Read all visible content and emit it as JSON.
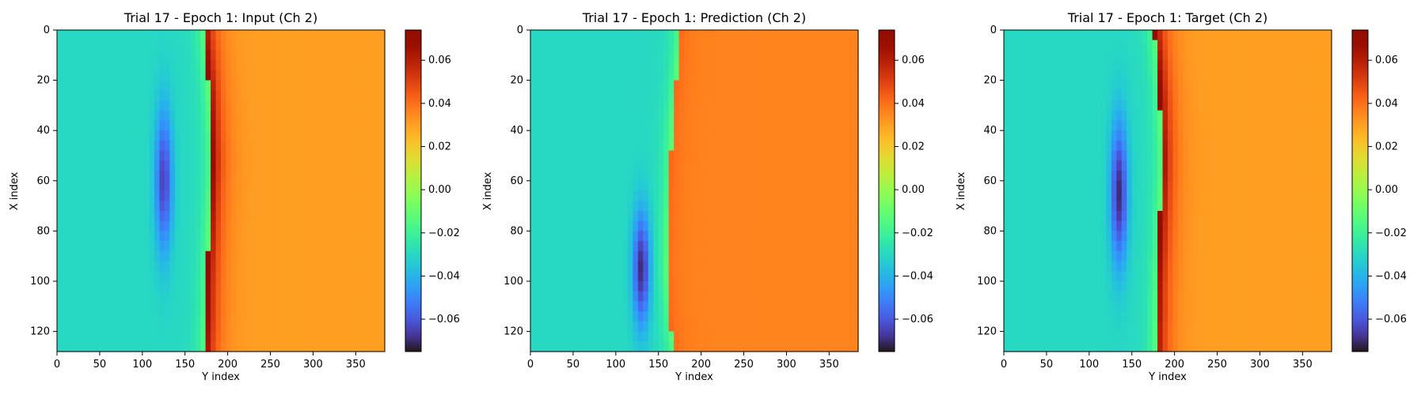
{
  "chart_data": [
    {
      "type": "heatmap",
      "title": "Trial 17 - Epoch 1: Input (Ch 2)",
      "xlabel": "Y index",
      "ylabel": "X index",
      "x_ticks": [
        0,
        50,
        100,
        150,
        200,
        250,
        300,
        350
      ],
      "y_ticks": [
        0,
        20,
        40,
        60,
        80,
        100,
        120
      ],
      "xlim": [
        0,
        384
      ],
      "ylim": [
        128,
        0
      ],
      "colorbar_ticks": [
        -0.06,
        -0.04,
        -0.02,
        0.0,
        0.02,
        0.04,
        0.06
      ],
      "colorbar_tick_labels": [
        "−0.06",
        "−0.04",
        "−0.02",
        "0.00",
        "0.02",
        "0.04",
        "0.06"
      ],
      "color_range": [
        -0.075,
        0.074
      ],
      "colormap": "turbo",
      "field": {
        "front_y": [
          172,
          174,
          176,
          178,
          179,
          180,
          181,
          181,
          180,
          179,
          178,
          177,
          176,
          175,
          175,
          174,
          173
        ],
        "front_peak": 0.074,
        "right_value": 0.03,
        "left_value": -0.03,
        "vortex": {
          "y": 125,
          "x_center": 60,
          "x_halfwidth": 35,
          "value": -0.065
        }
      }
    },
    {
      "type": "heatmap",
      "title": "Trial 17 - Epoch 1: Prediction (Ch 2)",
      "xlabel": "Y index",
      "ylabel": "X index",
      "x_ticks": [
        0,
        50,
        100,
        150,
        200,
        250,
        300,
        350
      ],
      "y_ticks": [
        0,
        20,
        40,
        60,
        80,
        100,
        120
      ],
      "xlim": [
        0,
        384
      ],
      "ylim": [
        128,
        0
      ],
      "colorbar_ticks": [
        -0.06,
        -0.04,
        -0.02,
        0.0,
        0.02,
        0.04,
        0.06
      ],
      "colorbar_tick_labels": [
        "−0.06",
        "−0.04",
        "−0.02",
        "0.00",
        "0.02",
        "0.04",
        "0.06"
      ],
      "color_range": [
        -0.075,
        0.074
      ],
      "colormap": "turbo",
      "field": {
        "front_y": [
          175,
          174,
          172,
          170,
          168,
          166,
          165,
          164,
          163,
          162,
          161,
          160,
          160,
          161,
          163,
          165,
          168
        ],
        "front_peak": 0.042,
        "right_value": 0.036,
        "left_value": -0.03,
        "vortex": {
          "y": 130,
          "x_center": 95,
          "x_halfwidth": 28,
          "value": -0.07
        }
      }
    },
    {
      "type": "heatmap",
      "title": "Trial 17 - Epoch 1: Target (Ch 2)",
      "xlabel": "Y index",
      "ylabel": "X index",
      "x_ticks": [
        0,
        50,
        100,
        150,
        200,
        250,
        300,
        350
      ],
      "y_ticks": [
        0,
        20,
        40,
        60,
        80,
        100,
        120
      ],
      "xlim": [
        0,
        384
      ],
      "ylim": [
        128,
        0
      ],
      "colorbar_ticks": [
        -0.06,
        -0.04,
        -0.02,
        0.0,
        0.02,
        0.04,
        0.06
      ],
      "colorbar_tick_labels": [
        "−0.06",
        "−0.04",
        "−0.02",
        "0.00",
        "0.02",
        "0.04",
        "0.06"
      ],
      "color_range": [
        -0.075,
        0.074
      ],
      "colormap": "turbo",
      "field": {
        "front_y": [
          176,
          178,
          180,
          182,
          183,
          184,
          185,
          185,
          184,
          183,
          182,
          181,
          180,
          179,
          179,
          178,
          178
        ],
        "front_peak": 0.074,
        "right_value": 0.03,
        "left_value": -0.03,
        "vortex": {
          "y": 135,
          "x_center": 65,
          "x_halfwidth": 35,
          "value": -0.07
        }
      }
    }
  ]
}
